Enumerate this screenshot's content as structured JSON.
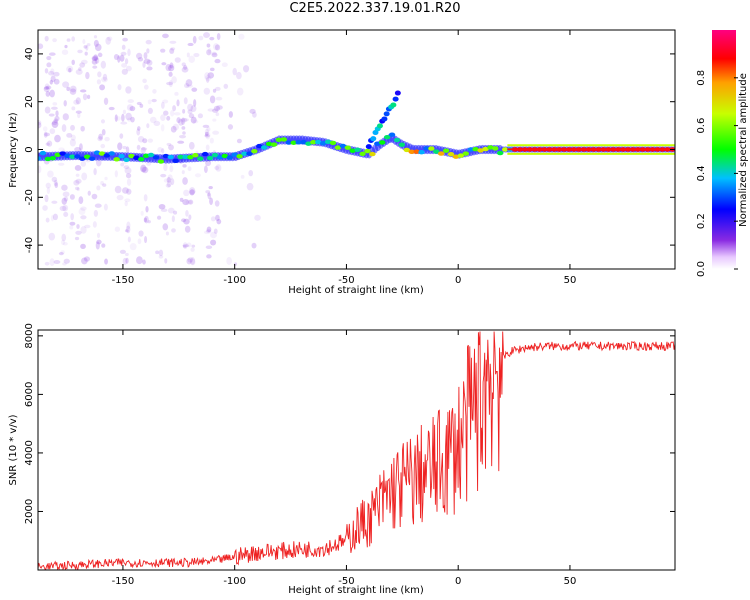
{
  "title": "C2E5.2022.337.19.01.R20",
  "chart_data": [
    {
      "type": "heatmap",
      "xlabel": "Height of straight line (km)",
      "ylabel": "Frequency (Hz)",
      "xlim": [
        -188,
        97
      ],
      "ylim": [
        -50,
        50
      ],
      "xticks": [
        -150,
        -100,
        -50,
        0,
        50
      ],
      "yticks": [
        -40,
        -20,
        0,
        20,
        40
      ],
      "grid": false,
      "colorscale": "rainbow (white → violet → blue → cyan → green → yellow → red → magenta)",
      "ridge": {
        "description": "dominant spectral ridge (frequency vs height)",
        "x": [
          -188,
          -170,
          -150,
          -130,
          -110,
          -100,
          -90,
          -80,
          -70,
          -60,
          -50,
          -40,
          -35,
          -30,
          -25,
          -20,
          -10,
          0,
          10,
          20,
          50,
          97
        ],
        "y": [
          -3,
          -2.5,
          -3,
          -4,
          -3,
          -3,
          0,
          4,
          4,
          3,
          0,
          -2,
          2,
          5,
          2,
          0,
          0,
          -2,
          0,
          0,
          0,
          0
        ]
      },
      "colorbar": {
        "label": "Normalized spectral amplitude",
        "range": [
          0.0,
          1.0
        ],
        "ticks": [
          "0.0",
          "0.2",
          "0.4",
          "0.6",
          "0.8"
        ]
      }
    },
    {
      "type": "line",
      "xlabel": "Height of straight line (km)",
      "ylabel": "SNR (10 * v/v)",
      "xlim": [
        -188,
        97
      ],
      "ylim": [
        0,
        8200
      ],
      "xticks": [
        -150,
        -100,
        -50,
        0,
        50
      ],
      "yticks": [
        2000,
        4000,
        6000,
        8000
      ],
      "grid": false,
      "series": [
        {
          "color": "#ee2222",
          "x": [
            -188,
            -175,
            -165,
            -150,
            -140,
            -130,
            -120,
            -110,
            -100,
            -90,
            -80,
            -70,
            -60,
            -50,
            -45,
            -40,
            -35,
            -30,
            -25,
            -20,
            -15,
            -10,
            -5,
            0,
            3,
            6,
            8,
            10,
            12,
            15,
            18,
            20,
            22,
            25,
            28,
            30,
            40,
            50,
            60,
            70,
            80,
            90,
            97
          ],
          "y": [
            100,
            150,
            200,
            250,
            250,
            250,
            250,
            300,
            450,
            600,
            650,
            700,
            750,
            1000,
            1500,
            1700,
            2200,
            2700,
            2900,
            3100,
            3300,
            3500,
            3800,
            4300,
            4800,
            5200,
            5700,
            5800,
            6400,
            6900,
            7000,
            7200,
            7400,
            7500,
            7550,
            7600,
            7650,
            7650,
            7650,
            7650,
            7650,
            7650,
            7650
          ]
        }
      ]
    }
  ]
}
